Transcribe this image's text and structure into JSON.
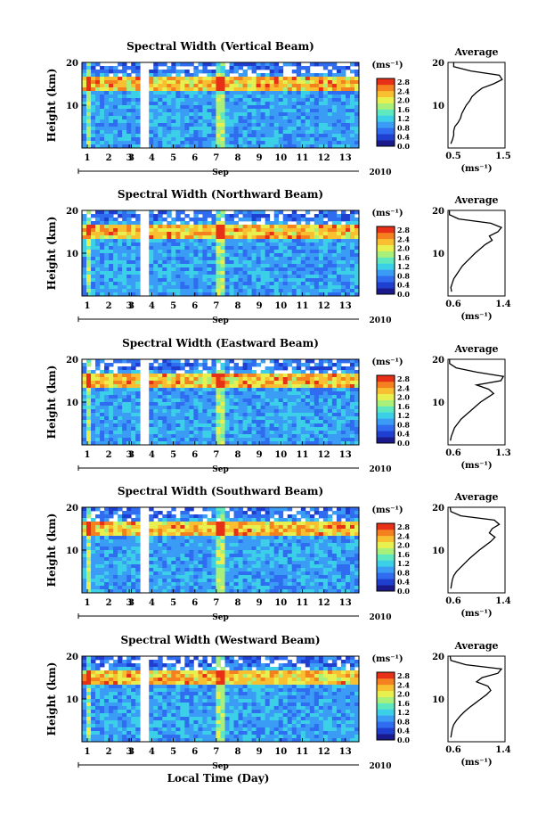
{
  "figure": {
    "xlabel": "Local Time (Day)",
    "month_label": "Sep",
    "year_label": "2010",
    "colorbar_unit": "(ms⁻¹)",
    "average_title": "Average",
    "average_xlabel": "(ms⁻¹)",
    "ylabel": "Height (km)"
  },
  "colors": {
    "colormap": [
      "#1a1a8c",
      "#1f3fd0",
      "#2f6cf0",
      "#3b9cf5",
      "#3ccfe8",
      "#5ee8c0",
      "#a8f07a",
      "#e8f050",
      "#f8c030",
      "#f48020",
      "#e83018"
    ],
    "background": "#ffffff",
    "gap": "#ffffff"
  },
  "chart_data": [
    {
      "type": "heatmap",
      "title": "Spectral Width (Vertical Beam)",
      "x_ticks": [
        "1",
        "2",
        "3",
        "3",
        "4",
        "5",
        "6",
        "7",
        "8",
        "9",
        "10",
        "11",
        "12",
        "13"
      ],
      "y_ticks": [
        "10",
        "20"
      ],
      "ylim": [
        0,
        20
      ],
      "colorbar_ticks": [
        "0.0",
        "0.4",
        "0.8",
        "1.2",
        "1.6",
        "2.0",
        "2.4",
        "2.8"
      ],
      "average": {
        "xlim": [
          0.5,
          1.5
        ],
        "xticks": [
          "0.5",
          "1.5"
        ],
        "heights": [
          1,
          2,
          3,
          4,
          5,
          6,
          7,
          8,
          9,
          10,
          11,
          12,
          13,
          14,
          15,
          16,
          17,
          18,
          19,
          20
        ],
        "values": [
          0.55,
          0.58,
          0.6,
          0.6,
          0.62,
          0.68,
          0.72,
          0.74,
          0.78,
          0.82,
          0.88,
          0.92,
          1.0,
          1.1,
          1.3,
          1.45,
          1.4,
          0.9,
          0.6,
          0.6
        ]
      }
    },
    {
      "type": "heatmap",
      "title": "Spectral Width (Northward Beam)",
      "x_ticks": [
        "1",
        "2",
        "3",
        "3",
        "4",
        "5",
        "6",
        "7",
        "8",
        "9",
        "10",
        "11",
        "12",
        "13"
      ],
      "y_ticks": [
        "10",
        "20"
      ],
      "ylim": [
        0,
        20
      ],
      "colorbar_ticks": [
        "0.0",
        "0.4",
        "0.8",
        "1.2",
        "1.6",
        "2.0",
        "2.4",
        "2.8"
      ],
      "average": {
        "xlim": [
          0.6,
          1.4
        ],
        "xticks": [
          "0.6",
          "1.4"
        ],
        "heights": [
          1,
          2,
          3,
          4,
          5,
          6,
          7,
          8,
          9,
          10,
          11,
          12,
          13,
          14,
          15,
          16,
          17,
          18,
          19,
          20
        ],
        "values": [
          0.65,
          0.64,
          0.66,
          0.68,
          0.72,
          0.76,
          0.8,
          0.86,
          0.92,
          0.98,
          1.05,
          1.12,
          1.22,
          1.18,
          1.3,
          1.35,
          1.2,
          0.75,
          0.62,
          0.62
        ]
      }
    },
    {
      "type": "heatmap",
      "title": "Spectral Width (Eastward Beam)",
      "x_ticks": [
        "1",
        "2",
        "3",
        "3",
        "4",
        "5",
        "6",
        "7",
        "8",
        "9",
        "10",
        "11",
        "12",
        "13"
      ],
      "y_ticks": [
        "10",
        "20"
      ],
      "ylim": [
        0,
        20
      ],
      "colorbar_ticks": [
        "0.0",
        "0.4",
        "0.8",
        "1.2",
        "1.6",
        "2.0",
        "2.4",
        "2.8"
      ],
      "average": {
        "xlim": [
          0.6,
          1.3
        ],
        "xticks": [
          "0.6",
          "1.3"
        ],
        "heights": [
          1,
          2,
          3,
          4,
          5,
          6,
          7,
          8,
          9,
          10,
          11,
          12,
          13,
          14,
          15,
          16,
          17,
          18,
          19,
          20
        ],
        "values": [
          0.63,
          0.64,
          0.66,
          0.68,
          0.72,
          0.76,
          0.82,
          0.88,
          0.94,
          1.0,
          1.08,
          1.16,
          1.1,
          0.95,
          1.25,
          1.28,
          0.95,
          0.7,
          0.62,
          0.62
        ]
      }
    },
    {
      "type": "heatmap",
      "title": "Spectral Width (Southward Beam)",
      "x_ticks": [
        "1",
        "2",
        "3",
        "3",
        "4",
        "5",
        "6",
        "7",
        "8",
        "9",
        "10",
        "11",
        "12",
        "13"
      ],
      "y_ticks": [
        "10",
        "20"
      ],
      "ylim": [
        0,
        20
      ],
      "colorbar_ticks": [
        "0.0",
        "0.4",
        "0.8",
        "1.2",
        "1.6",
        "2.0",
        "2.4",
        "2.8"
      ],
      "average": {
        "xlim": [
          0.6,
          1.4
        ],
        "xticks": [
          "0.6",
          "1.4"
        ],
        "heights": [
          1,
          2,
          3,
          4,
          5,
          6,
          7,
          8,
          9,
          10,
          11,
          12,
          13,
          14,
          15,
          16,
          17,
          18,
          19,
          20
        ],
        "values": [
          0.64,
          0.65,
          0.66,
          0.68,
          0.72,
          0.78,
          0.84,
          0.9,
          0.97,
          1.04,
          1.12,
          1.2,
          1.26,
          1.18,
          1.22,
          1.32,
          1.25,
          0.78,
          0.64,
          0.63
        ]
      }
    },
    {
      "type": "heatmap",
      "title": "Spectral Width (Westward Beam)",
      "x_ticks": [
        "1",
        "2",
        "3",
        "3",
        "4",
        "5",
        "6",
        "7",
        "8",
        "9",
        "10",
        "11",
        "12",
        "13"
      ],
      "y_ticks": [
        "10",
        "20"
      ],
      "ylim": [
        0,
        20
      ],
      "colorbar_ticks": [
        "0.0",
        "0.4",
        "0.8",
        "1.2",
        "1.6",
        "2.0",
        "2.4",
        "2.8"
      ],
      "average": {
        "xlim": [
          0.6,
          1.4
        ],
        "xticks": [
          "0.6",
          "1.4"
        ],
        "heights": [
          1,
          2,
          3,
          4,
          5,
          6,
          7,
          8,
          9,
          10,
          11,
          12,
          13,
          14,
          15,
          16,
          17,
          18,
          19,
          20
        ],
        "values": [
          0.64,
          0.65,
          0.66,
          0.68,
          0.72,
          0.77,
          0.83,
          0.9,
          0.98,
          1.06,
          1.14,
          1.2,
          1.16,
          1.0,
          1.08,
          1.3,
          1.35,
          0.85,
          0.64,
          0.63
        ]
      }
    }
  ]
}
